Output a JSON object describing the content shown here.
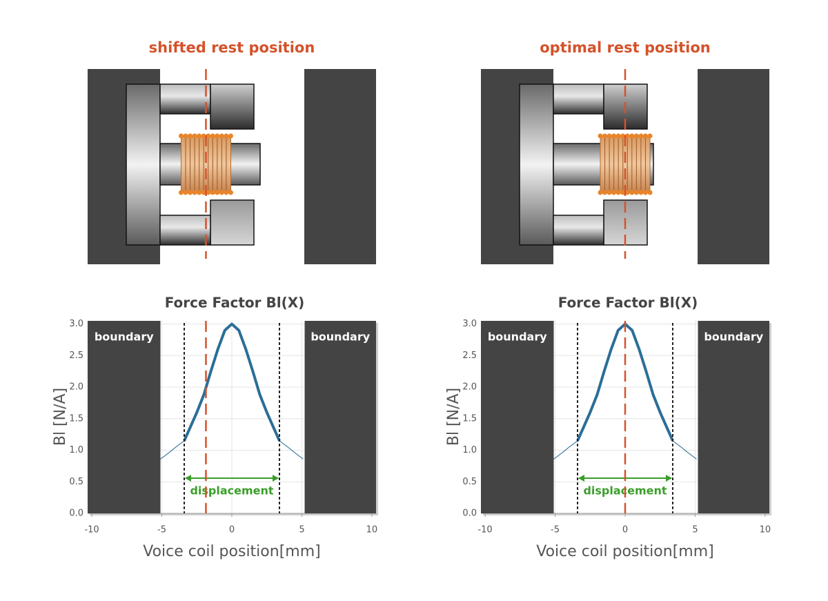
{
  "chart_data": [
    {
      "type": "line",
      "heading": "shifted rest position",
      "title": "Force Factor Bl(X)",
      "x_label": "Voice coil position[mm]",
      "y_label": "Bl [N/A]",
      "x": [
        -5.1,
        -4.5,
        -4,
        -3.4,
        -3,
        -2.5,
        -2,
        -1.5,
        -1,
        -0.5,
        0,
        0.5,
        1,
        1.5,
        2,
        2.5,
        3,
        3.4,
        4,
        4.5,
        5.1
      ],
      "values": [
        0.86,
        0.96,
        1.05,
        1.15,
        1.35,
        1.6,
        1.88,
        2.25,
        2.6,
        2.9,
        3.0,
        2.9,
        2.6,
        2.25,
        1.88,
        1.6,
        1.35,
        1.15,
        1.05,
        0.96,
        0.86
      ],
      "color": "#2a6e98",
      "xlim": [
        -10.3,
        10.3
      ],
      "ylim": [
        0,
        3.05
      ],
      "xticks": [
        -10,
        -5,
        0,
        5,
        10
      ],
      "yticks": [
        {
          "value": 0,
          "label": "0.0"
        },
        0.5,
        {
          "value": 1,
          "label": "1.0"
        },
        1.5,
        {
          "value": 2,
          "label": "2.0"
        },
        2.5,
        {
          "value": 3,
          "label": "3.0"
        }
      ],
      "grid": true,
      "boundary": [
        -5.1,
        5.2
      ],
      "boundary_label": "boundary",
      "displacement": [
        -3.4,
        3.4
      ],
      "displacement_label": "displacement",
      "rest_position": -1.85
    },
    {
      "type": "line",
      "heading": "optimal rest position",
      "title": "Force Factor Bl(X)",
      "x_label": "Voice coil position[mm]",
      "y_label": "Bl [N/A]",
      "x": [
        -5.1,
        -4.5,
        -4,
        -3.4,
        -3,
        -2.5,
        -2,
        -1.5,
        -1,
        -0.5,
        0,
        0.5,
        1,
        1.5,
        2,
        2.5,
        3,
        3.4,
        4,
        4.5,
        5.1
      ],
      "values": [
        0.86,
        0.96,
        1.05,
        1.15,
        1.35,
        1.6,
        1.88,
        2.25,
        2.6,
        2.9,
        3.0,
        2.9,
        2.6,
        2.25,
        1.88,
        1.6,
        1.35,
        1.15,
        1.05,
        0.96,
        0.86
      ],
      "color": "#2a6e98",
      "xlim": [
        -10.3,
        10.3
      ],
      "ylim": [
        0,
        3.05
      ],
      "xticks": [
        -10,
        -5,
        0,
        5,
        10
      ],
      "yticks": [
        {
          "value": 0,
          "label": "0.0"
        },
        0.5,
        {
          "value": 1,
          "label": "1.0"
        },
        1.5,
        {
          "value": 2,
          "label": "2.0"
        },
        2.5,
        {
          "value": 3,
          "label": "3.0"
        }
      ],
      "grid": true,
      "boundary": [
        -5.1,
        5.2
      ],
      "boundary_label": "boundary",
      "displacement": [
        -3.4,
        3.4
      ],
      "displacement_label": "displacement",
      "rest_position": 0
    }
  ]
}
